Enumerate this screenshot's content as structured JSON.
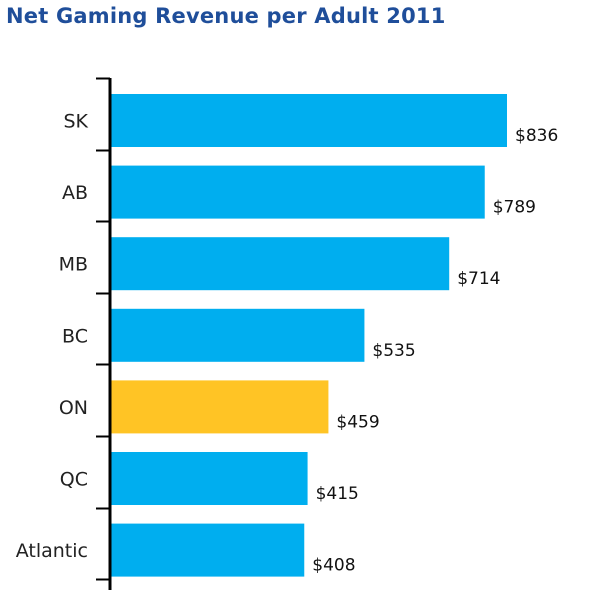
{
  "chart_data": {
    "type": "bar",
    "orientation": "horizontal",
    "title": "Net Gaming Revenue per Adult 2011",
    "categories": [
      "SK",
      "AB",
      "MB",
      "BC",
      "ON",
      "QC",
      "Atlantic"
    ],
    "values": [
      836,
      789,
      714,
      535,
      459,
      415,
      408
    ],
    "value_labels": [
      "$836",
      "$789",
      "$714",
      "$535",
      "$459",
      "$415",
      "$408"
    ],
    "bar_colors": [
      "#00aeef",
      "#00aeef",
      "#00aeef",
      "#00aeef",
      "#ffc425",
      "#00aeef",
      "#00aeef"
    ],
    "xlim": [
      0,
      836
    ],
    "grid": false,
    "legend": "none"
  }
}
